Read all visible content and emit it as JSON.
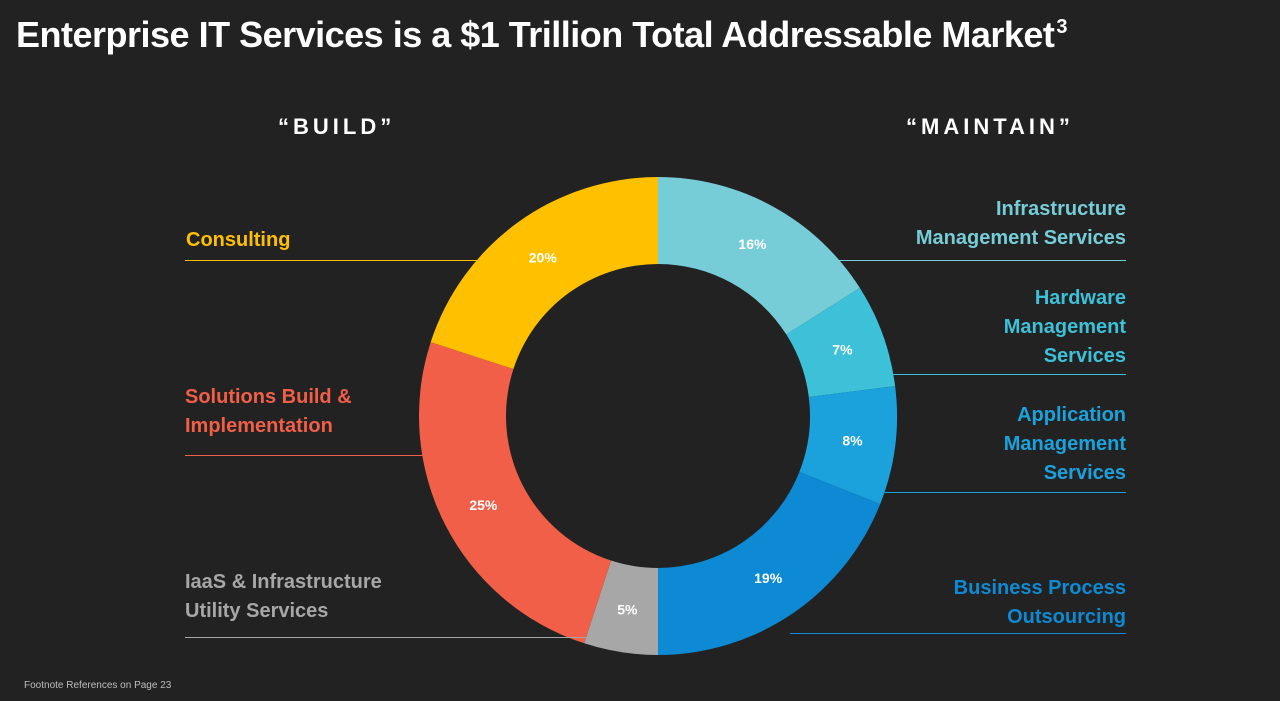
{
  "title": {
    "main": "Enterprise IT Services is a $1 Trillion Total Addressable Market",
    "sup": "3"
  },
  "sections": {
    "build": "“BUILD”",
    "maintain": "“MAINTAIN”"
  },
  "chart_data": {
    "type": "pie",
    "style": "donut",
    "title": "Enterprise IT Services is a $1 Trillion Total Addressable Market",
    "slices": [
      {
        "name": "Infrastructure Management Services",
        "value": 16,
        "label": "16%",
        "color": "#76CDD8"
      },
      {
        "name": "Hardware Management Services",
        "value": 7,
        "label": "7%",
        "color": "#3DC1D8"
      },
      {
        "name": "Application Management Services",
        "value": 8,
        "label": "8%",
        "color": "#1BA2DC"
      },
      {
        "name": "Business Process Outsourcing",
        "value": 19,
        "label": "19%",
        "color": "#0D8AD3"
      },
      {
        "name": "IaaS & Infrastructure Utility Services",
        "value": 5,
        "label": "5%",
        "color": "#A7A7A7"
      },
      {
        "name": "Solutions Build & Implementation",
        "value": 25,
        "label": "25%",
        "color": "#F15F48"
      },
      {
        "name": "Consulting",
        "value": 20,
        "label": "20%",
        "color": "#FFC000"
      }
    ]
  },
  "legend": {
    "consulting": "Consulting",
    "solutions": "Solutions Build &\nImplementation",
    "iaas": "IaaS & Infrastructure\nUtility Services",
    "ims": "Infrastructure\nManagement Services",
    "hms": "Hardware\nManagement\nServices",
    "ams": "Application\nManagement\nServices",
    "bpo": "Business Process\nOutsourcing"
  },
  "colors": {
    "consulting": "#FFC000",
    "solutions": "#F15F48",
    "iaas": "#A7A7A7",
    "ims": "#76CDD8",
    "hms": "#3DC1D8",
    "ams": "#1BA2DC",
    "bpo": "#0D8AD3"
  },
  "footnote": "Footnote References on Page 23"
}
